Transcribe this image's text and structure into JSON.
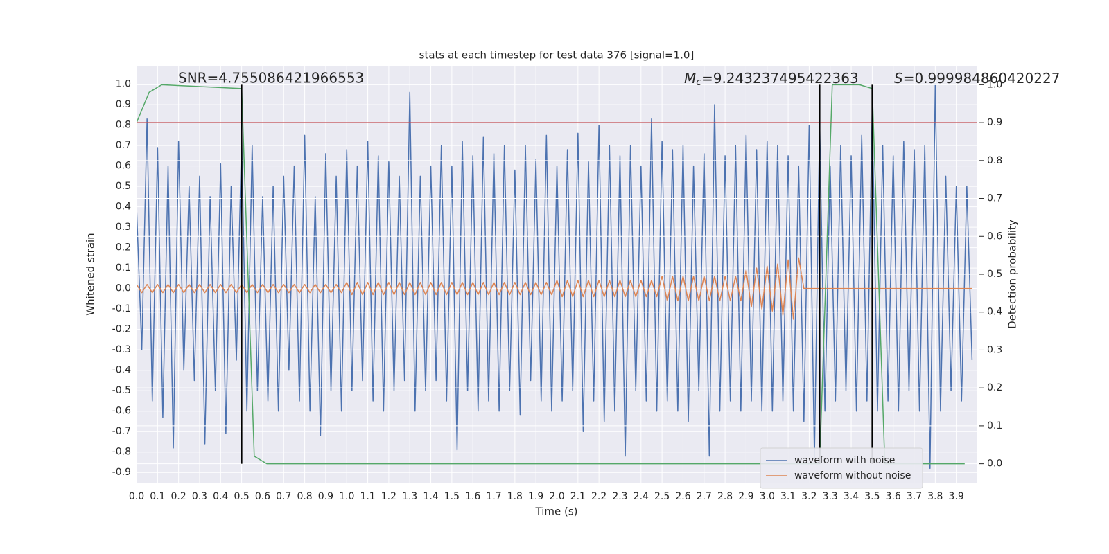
{
  "chart_data": {
    "type": "line",
    "title": "stats at each timestep for test data 376 [signal=1.0]",
    "xlabel": "Time (s)",
    "ylabel": "Whitened strain",
    "y2label": "Detection probability",
    "xlim": [
      0,
      4.0
    ],
    "ylim": [
      -0.95,
      1.09
    ],
    "y2lim": [
      -0.05,
      1.05
    ],
    "grid": true,
    "legend": "lower right",
    "xticks": [
      {
        "value": 0,
        "label": "0.0"
      },
      0.1,
      0.2,
      0.3,
      0.4,
      0.5,
      0.6,
      0.7,
      0.8,
      0.9,
      {
        "value": 1,
        "label": "1.0"
      },
      1.1,
      1.2,
      1.3,
      1.4,
      1.5,
      1.6,
      1.7,
      1.8,
      1.9,
      {
        "value": 2,
        "label": "2.0"
      },
      2.1,
      2.2,
      2.3,
      2.4,
      2.5,
      2.6,
      2.7,
      2.8,
      2.9,
      {
        "value": 3,
        "label": "3.0"
      },
      3.1,
      3.2,
      3.3,
      3.4,
      3.5,
      3.6,
      3.7,
      3.8,
      3.9
    ],
    "yticks": [
      -0.9,
      -0.8,
      -0.7,
      -0.6,
      -0.5,
      -0.4,
      -0.3,
      -0.2,
      -0.1,
      {
        "value": 0,
        "label": "0.0"
      },
      0.1,
      0.2,
      0.3,
      0.4,
      0.5,
      0.6,
      0.7,
      0.8,
      0.9,
      {
        "value": 1,
        "label": "1.0"
      }
    ],
    "y2ticks": [
      {
        "value": 0,
        "label": "0.0"
      },
      0.1,
      0.2,
      0.3,
      0.4,
      0.5,
      0.6,
      0.7,
      0.8,
      0.9,
      {
        "value": 1,
        "label": "1.0"
      }
    ],
    "x": [
      0,
      0.025,
      0.05,
      0.075,
      0.1,
      0.125,
      0.15,
      0.175,
      0.2,
      0.225,
      0.25,
      0.275,
      0.3,
      0.325,
      0.35,
      0.375,
      0.4,
      0.425,
      0.45,
      0.475,
      0.5,
      0.525,
      0.55,
      0.575,
      0.6,
      0.625,
      0.65,
      0.675,
      0.7,
      0.725,
      0.75,
      0.775,
      0.8,
      0.825,
      0.85,
      0.875,
      0.9,
      0.925,
      0.95,
      0.975,
      1.0,
      1.025,
      1.05,
      1.075,
      1.1,
      1.125,
      1.15,
      1.175,
      1.2,
      1.225,
      1.25,
      1.275,
      1.3,
      1.325,
      1.35,
      1.375,
      1.4,
      1.425,
      1.45,
      1.475,
      1.5,
      1.525,
      1.55,
      1.575,
      1.6,
      1.625,
      1.65,
      1.675,
      1.7,
      1.725,
      1.75,
      1.775,
      1.8,
      1.825,
      1.85,
      1.875,
      1.9,
      1.925,
      1.95,
      1.975,
      2.0,
      2.025,
      2.05,
      2.075,
      2.1,
      2.125,
      2.15,
      2.175,
      2.2,
      2.225,
      2.25,
      2.275,
      2.3,
      2.325,
      2.35,
      2.375,
      2.4,
      2.425,
      2.45,
      2.475,
      2.5,
      2.525,
      2.55,
      2.575,
      2.6,
      2.625,
      2.65,
      2.675,
      2.7,
      2.725,
      2.75,
      2.775,
      2.8,
      2.825,
      2.85,
      2.875,
      2.9,
      2.925,
      2.95,
      2.975,
      3.0,
      3.025,
      3.05,
      3.075,
      3.1,
      3.125,
      3.15,
      3.175,
      3.2,
      3.225,
      3.25,
      3.275,
      3.3,
      3.325,
      3.35,
      3.375,
      3.4,
      3.425,
      3.45,
      3.475,
      3.5,
      3.525,
      3.55,
      3.575,
      3.6,
      3.625,
      3.65,
      3.675,
      3.7,
      3.725,
      3.75,
      3.775,
      3.8,
      3.825,
      3.85,
      3.875,
      3.9,
      3.925,
      3.95,
      3.975
    ],
    "series": [
      {
        "name": "waveform with noise",
        "color": "#4c72b0",
        "values": [
          0.4,
          -0.3,
          0.83,
          -0.55,
          0.69,
          -0.63,
          0.6,
          -0.78,
          0.72,
          -0.4,
          0.5,
          -0.45,
          0.55,
          -0.76,
          0.45,
          -0.5,
          0.61,
          -0.71,
          0.5,
          -0.35,
          0.74,
          -0.6,
          0.7,
          -0.5,
          0.45,
          -0.55,
          0.5,
          -0.6,
          0.55,
          -0.4,
          0.6,
          -0.55,
          0.75,
          -0.6,
          0.45,
          -0.72,
          0.66,
          -0.5,
          0.55,
          -0.6,
          0.68,
          -0.5,
          0.6,
          -0.45,
          0.72,
          -0.55,
          0.65,
          -0.6,
          0.62,
          -0.5,
          0.55,
          -0.45,
          0.96,
          -0.6,
          0.55,
          -0.5,
          0.6,
          -0.45,
          0.7,
          -0.55,
          0.6,
          -0.79,
          0.72,
          -0.5,
          0.65,
          -0.6,
          0.74,
          -0.55,
          0.66,
          -0.6,
          0.7,
          -0.5,
          0.58,
          -0.62,
          0.7,
          -0.45,
          0.63,
          -0.55,
          0.75,
          -0.6,
          0.6,
          -0.55,
          0.68,
          -0.5,
          0.76,
          -0.7,
          0.62,
          -0.55,
          0.8,
          -0.65,
          0.7,
          -0.6,
          0.65,
          -0.82,
          0.7,
          -0.5,
          0.6,
          -0.55,
          0.83,
          -0.6,
          0.72,
          -0.55,
          0.68,
          -0.6,
          0.7,
          -0.65,
          0.6,
          -0.5,
          0.66,
          -0.82,
          0.9,
          -0.6,
          0.65,
          -0.55,
          0.7,
          -0.6,
          0.75,
          -0.55,
          0.68,
          -0.6,
          0.72,
          -0.6,
          0.7,
          -0.55,
          0.65,
          -0.6,
          0.6,
          -0.65,
          0.8,
          -0.83,
          0.81,
          -0.6,
          0.6,
          -0.55,
          0.7,
          -0.5,
          0.65,
          -0.6,
          0.75,
          -0.55,
          0.88,
          -0.6,
          0.7,
          -0.55,
          0.65,
          -0.6,
          0.72,
          -0.5,
          0.68,
          -0.6,
          0.7,
          -0.88,
          1.0,
          -0.6,
          0.55,
          -0.5,
          0.5,
          -0.55,
          0.5,
          -0.35
        ]
      },
      {
        "name": "waveform without noise",
        "color": "#dd8452",
        "values": [
          0.02,
          -0.02,
          0.02,
          -0.02,
          0.02,
          -0.02,
          0.02,
          -0.02,
          0.02,
          -0.02,
          0.02,
          -0.02,
          0.02,
          -0.02,
          0.02,
          -0.02,
          0.02,
          -0.02,
          0.02,
          -0.02,
          0.02,
          -0.02,
          0.02,
          -0.02,
          0.02,
          -0.02,
          0.02,
          -0.02,
          0.02,
          -0.02,
          0.02,
          -0.02,
          0.02,
          -0.02,
          0.02,
          -0.02,
          0.02,
          -0.02,
          0.02,
          -0.02,
          0.03,
          -0.03,
          0.03,
          -0.03,
          0.03,
          -0.03,
          0.03,
          -0.03,
          0.03,
          -0.03,
          0.03,
          -0.03,
          0.03,
          -0.03,
          0.03,
          -0.03,
          0.03,
          -0.03,
          0.03,
          -0.03,
          0.03,
          -0.03,
          0.03,
          -0.03,
          0.03,
          -0.03,
          0.03,
          -0.03,
          0.03,
          -0.03,
          0.03,
          -0.03,
          0.03,
          -0.03,
          0.03,
          -0.03,
          0.03,
          -0.03,
          0.03,
          -0.03,
          0.04,
          -0.04,
          0.04,
          -0.04,
          0.04,
          -0.04,
          0.04,
          -0.04,
          0.04,
          -0.04,
          0.04,
          -0.04,
          0.04,
          -0.04,
          0.04,
          -0.04,
          0.04,
          -0.04,
          0.04,
          -0.04,
          0.06,
          -0.06,
          0.06,
          -0.06,
          0.06,
          -0.06,
          0.06,
          -0.06,
          0.06,
          -0.06,
          0.06,
          -0.06,
          0.06,
          -0.06,
          0.06,
          -0.06,
          0.09,
          -0.09,
          0.1,
          -0.1,
          0.11,
          -0.11,
          0.12,
          -0.13,
          0.14,
          -0.15,
          0.15,
          0,
          0,
          0,
          0,
          0,
          0,
          0,
          0,
          0,
          0,
          0,
          0,
          0,
          0,
          0,
          0,
          0,
          0,
          0,
          0,
          0,
          0,
          0,
          0,
          0,
          0,
          0,
          0,
          0,
          0,
          0,
          0,
          0
        ]
      },
      {
        "color": "#55a868",
        "axis": "y2",
        "x": [
          0,
          0.06,
          0.12,
          0.5,
          0.56,
          0.62,
          3.19,
          3.25,
          3.31,
          3.44,
          3.5,
          3.56,
          3.94
        ],
        "values": [
          0.9,
          0.98,
          1.0,
          0.99,
          0.02,
          0,
          0,
          0,
          1.0,
          1.0,
          0.99,
          0,
          0
        ]
      }
    ],
    "threshold": {
      "value": 0.9,
      "color": "#c44e52",
      "axis": "y2"
    },
    "vlines": {
      "x": [
        0.5,
        3.25,
        3.5
      ],
      "range": [
        0,
        1.0
      ],
      "color": "#000000",
      "axis": "y2"
    },
    "annotations": [
      {
        "text": "SNR=4.755086421966553"
      },
      {
        "symbol": "M",
        "subscript": "c",
        "text": "=9.243237495422363"
      },
      {
        "symbol": "S",
        "text": "=0.999984860420227"
      }
    ]
  }
}
